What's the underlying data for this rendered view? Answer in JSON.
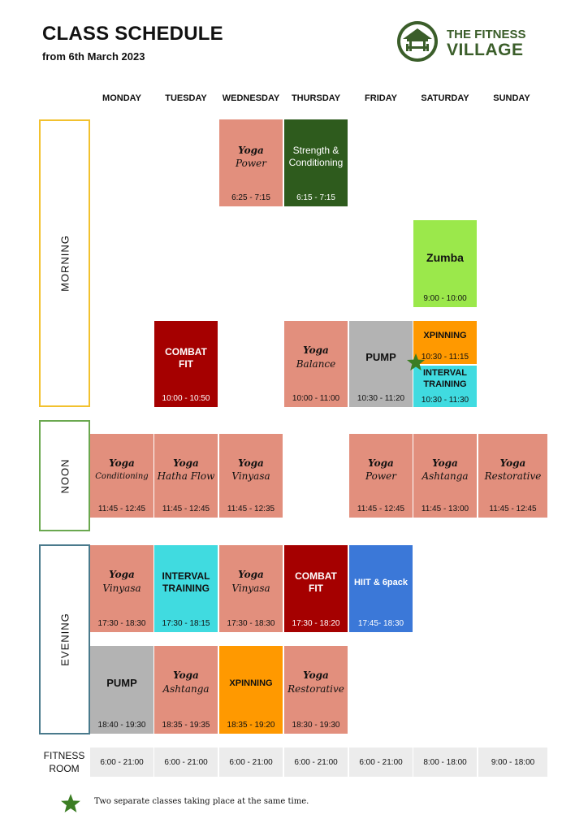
{
  "header": {
    "title": "CLASS SCHEDULE",
    "subtitle": "from 6th March  2023",
    "brand_line1": "THE FITNESS",
    "brand_line2": "VILLAGE"
  },
  "days": [
    "MONDAY",
    "TUESDAY",
    "WEDNESDAY",
    "THURSDAY",
    "FRIDAY",
    "SATURDAY",
    "SUNDAY"
  ],
  "periods": [
    "MORNING",
    "NOON",
    "EVENING"
  ],
  "classes": {
    "wed_yoga_power": {
      "line1": "Yoga",
      "line2": "Power",
      "time": "6:25 - 7:15"
    },
    "thu_strength": {
      "line1": "Strength &",
      "line2": "Conditioning",
      "time": "6:15 - 7:15"
    },
    "sat_zumba": {
      "line1": "Zumba",
      "time": "9:00 - 10:00"
    },
    "tue_combat": {
      "line1": "COMBAT",
      "line2": "FIT",
      "time": "10:00 - 10:50"
    },
    "thu_yoga_balance": {
      "line1": "Yoga",
      "line2": "Balance",
      "time": "10:00 - 11:00"
    },
    "fri_pump": {
      "line1": "PUMP",
      "time": "10:30 - 11:20"
    },
    "sat_xpinning": {
      "line1": "XPINNING",
      "time": "10:30 - 11:15"
    },
    "sat_interval": {
      "line1": "INTERVAL",
      "line2": "TRAINING",
      "time": "10:30 - 11:30"
    },
    "mon_yoga_cond": {
      "line1": "Yoga",
      "line2": "Conditioning",
      "time": "11:45 - 12:45"
    },
    "tue_yoga_hatha": {
      "line1": "Yoga",
      "line2": "Hatha Flow",
      "time": "11:45 - 12:45"
    },
    "wed_yoga_vinyasa": {
      "line1": "Yoga",
      "line2": "Vinyasa",
      "time": "11:45 - 12:35"
    },
    "fri_yoga_power": {
      "line1": "Yoga",
      "line2": "Power",
      "time": "11:45 - 12:45"
    },
    "sat_yoga_ashtanga": {
      "line1": "Yoga",
      "line2": "Ashtanga",
      "time": "11:45 - 13:00"
    },
    "sun_yoga_restorative": {
      "line1": "Yoga",
      "line2": "Restorative",
      "time": "11:45 - 12:45"
    },
    "mon_eve_yoga_vinyasa": {
      "line1": "Yoga",
      "line2": "Vinyasa",
      "time": "17:30 - 18:30"
    },
    "tue_eve_interval": {
      "line1": "INTERVAL",
      "line2": "TRAINING",
      "time": "17:30 - 18:15"
    },
    "wed_eve_yoga_vinyasa": {
      "line1": "Yoga",
      "line2": "Vinyasa",
      "time": "17:30 - 18:30"
    },
    "thu_eve_combat": {
      "line1": "COMBAT",
      "line2": "FIT",
      "time": "17:30 - 18:20"
    },
    "fri_eve_hiit": {
      "line1": "HIIT & 6pack",
      "time": "17:45- 18:30"
    },
    "mon_eve_pump": {
      "line1": "PUMP",
      "time": "18:40 - 19:30"
    },
    "tue_eve_yoga_ashtanga": {
      "line1": "Yoga",
      "line2": "Ashtanga",
      "time": "18:35 - 19:35"
    },
    "wed_eve_xpinning": {
      "line1": "XPINNING",
      "time": "18:35 - 19:20"
    },
    "thu_eve_yoga_restorative": {
      "line1": "Yoga",
      "line2": "Restorative",
      "time": "18:30 - 19:30"
    }
  },
  "fitness_room": {
    "label_line1": "FITNESS",
    "label_line2": "ROOM",
    "hours": [
      "6:00 - 21:00",
      "6:00 - 21:00",
      "6:00 - 21:00",
      "6:00 - 21:00",
      "6:00 - 21:00",
      "8:00 - 18:00",
      "9:00 - 18:00"
    ]
  },
  "note": "Two separate classes taking place at the same time.",
  "colors": {
    "yoga": "#e28f7d",
    "strength": "#2e5b1d",
    "zumba": "#9be84b",
    "combat": "#a50000",
    "pump": "#b3b3b3",
    "xpinning": "#ff9900",
    "interval": "#40dbe0",
    "hiit": "#3b78d8",
    "morning_border": "#f2c12e",
    "noon_border": "#6aa84f",
    "evening_border": "#4a7a8c",
    "star": "#3b7d23"
  },
  "icons": [
    "fitness-village-logo-icon",
    "star-icon"
  ]
}
